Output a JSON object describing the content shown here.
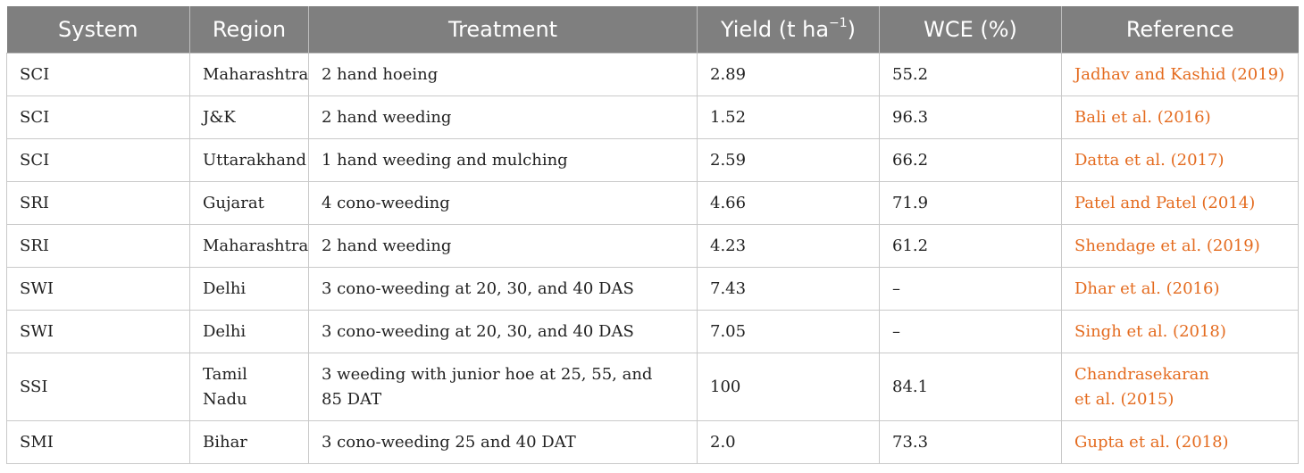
{
  "table": {
    "headers": {
      "system": "System",
      "region": "Region",
      "treatment": "Treatment",
      "yield_base": "Yield (t ha",
      "yield_sup": "−1",
      "yield_close": ")",
      "wce": "WCE (%)",
      "reference": "Reference"
    },
    "rows": [
      {
        "system": "SCI",
        "region": "Maharashtra",
        "treatment": "2 hand hoeing",
        "yield": "2.89",
        "wce": "55.2",
        "reference": "Jadhav and Kashid (2019)"
      },
      {
        "system": "SCI",
        "region": "J&K",
        "treatment": "2 hand weeding",
        "yield": "1.52",
        "wce": "96.3",
        "reference": "Bali et al. (2016)"
      },
      {
        "system": "SCI",
        "region": "Uttarakhand",
        "treatment": "1 hand weeding and mulching",
        "yield": "2.59",
        "wce": "66.2",
        "reference": "Datta et al. (2017)"
      },
      {
        "system": "SRI",
        "region": "Gujarat",
        "treatment": "4 cono-weeding",
        "yield": "4.66",
        "wce": "71.9",
        "reference": "Patel and Patel (2014)"
      },
      {
        "system": "SRI",
        "region": "Maharashtra",
        "treatment": "2 hand weeding",
        "yield": "4.23",
        "wce": "61.2",
        "reference": "Shendage et al. (2019)"
      },
      {
        "system": "SWI",
        "region": "Delhi",
        "treatment": "3 cono-weeding at 20, 30, and 40 DAS",
        "yield": "7.43",
        "wce": "–",
        "reference": "Dhar et al. (2016)"
      },
      {
        "system": "SWI",
        "region": "Delhi",
        "treatment": "3 cono-weeding at 20, 30, and 40 DAS",
        "yield": "7.05",
        "wce": "–",
        "reference": "Singh et al. (2018)"
      },
      {
        "system": "SSI",
        "region": "Tamil Nadu",
        "treatment_line1": "3 weeding with junior hoe at 25, 55, and",
        "treatment_line2": "85 DAT",
        "yield": "100",
        "wce": "84.1",
        "reference_line1": "Chandrasekaran",
        "reference_line2": "et al. (2015)"
      },
      {
        "system": "SMI",
        "region": "Bihar",
        "treatment": "3 cono-weeding 25 and 40 DAT",
        "yield": "2.0",
        "wce": "73.3",
        "reference": "Gupta et al. (2018)"
      }
    ]
  },
  "colors": {
    "header_bg": "#7f7f7f",
    "reference_link": "#e46b1f"
  }
}
